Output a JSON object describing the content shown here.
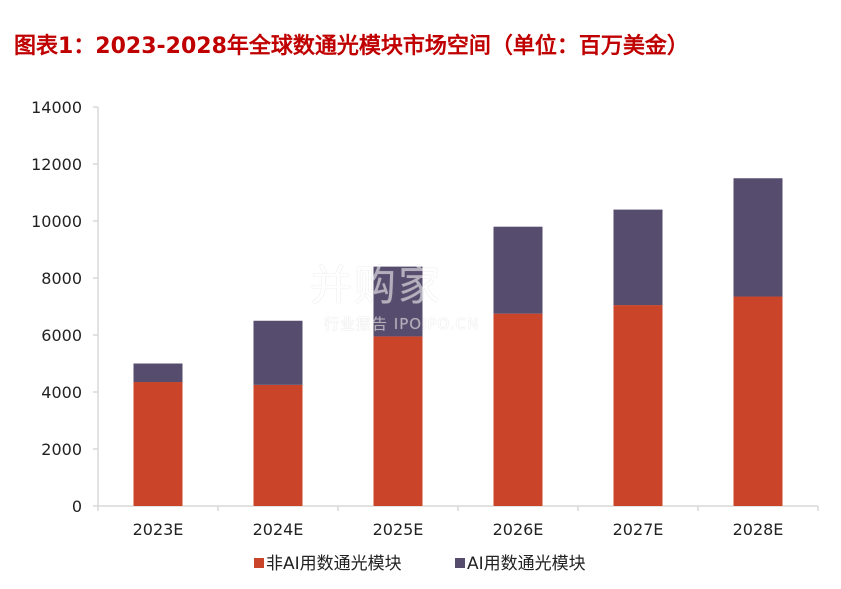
{
  "title": "图表1：2023-2028年全球数通光模块市场空间（单位：百万美金）",
  "watermark": {
    "main": "并购家",
    "sub": "行业报告 IPOIPO.CN"
  },
  "colors": {
    "title": "#c00000",
    "non_ai": "#c94428",
    "ai": "#564d6e",
    "axis": "#d9d9d9"
  },
  "chart_data": {
    "type": "bar",
    "stacked": true,
    "title": "",
    "xlabel": "",
    "ylabel": "",
    "categories": [
      "2023E",
      "2024E",
      "2025E",
      "2026E",
      "2027E",
      "2028E"
    ],
    "series": [
      {
        "name": "非AI用数通光模块",
        "color": "#c94428",
        "values": [
          4350,
          4250,
          5950,
          6750,
          7050,
          7350
        ]
      },
      {
        "name": "AI用数通光模块",
        "color": "#564d6e",
        "values": [
          650,
          2250,
          2450,
          3050,
          3350,
          4150
        ]
      }
    ],
    "ylim": [
      0,
      14000
    ],
    "yticks": [
      0,
      2000,
      4000,
      6000,
      8000,
      10000,
      12000,
      14000
    ],
    "grid": false,
    "legend_position": "bottom"
  }
}
